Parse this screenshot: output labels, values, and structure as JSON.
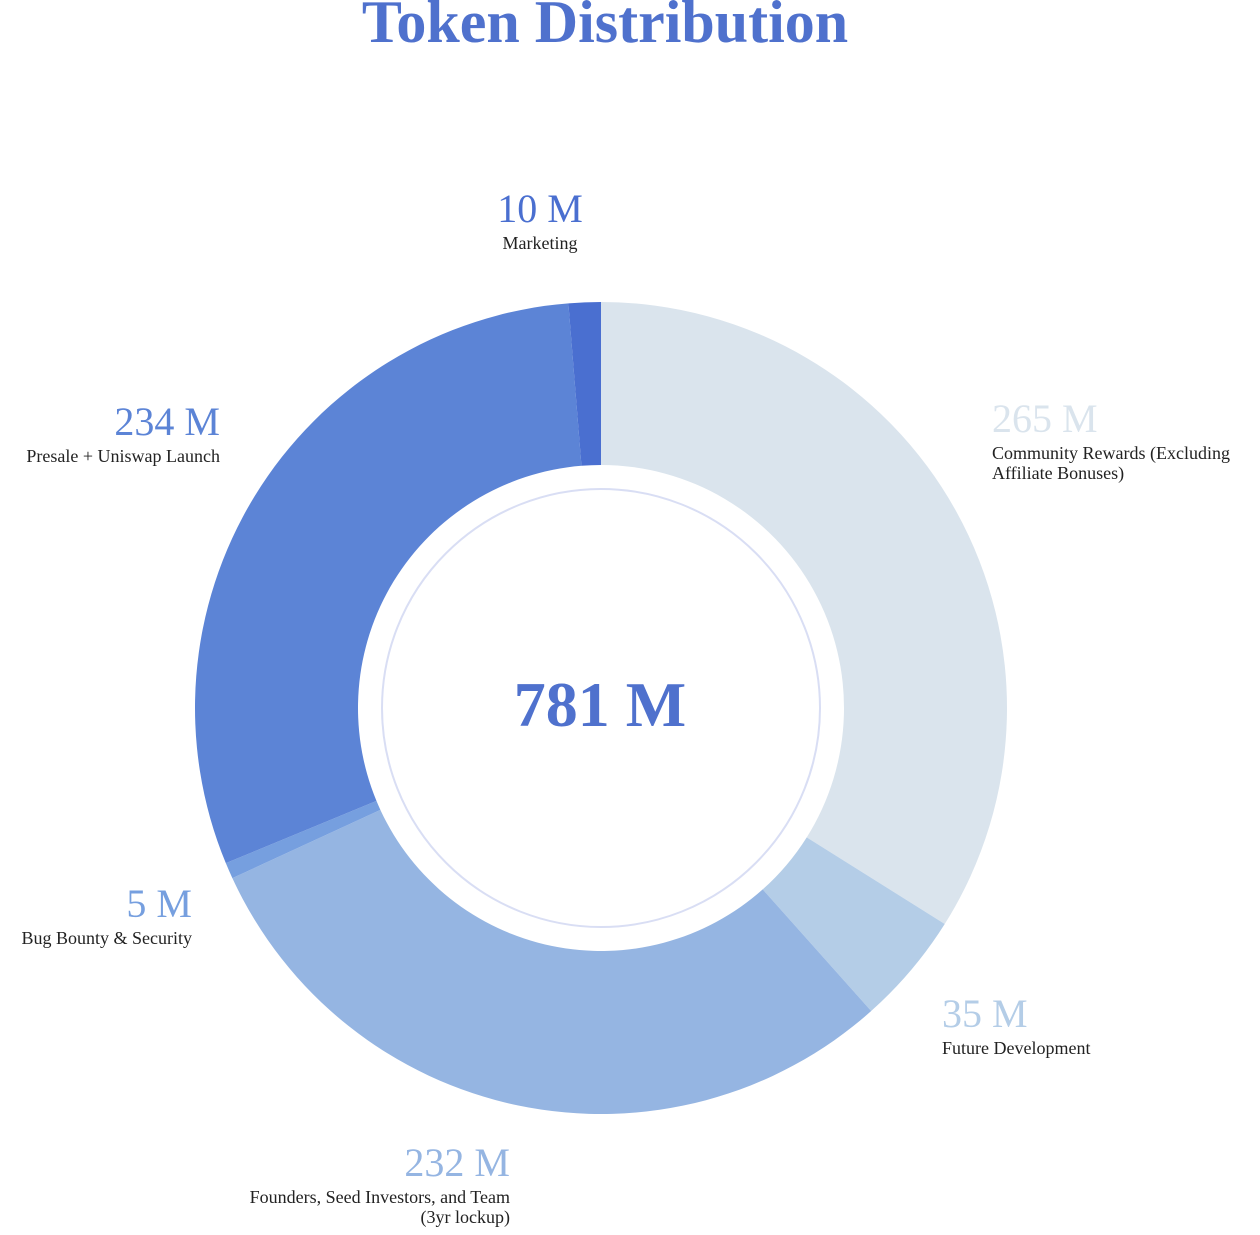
{
  "chart_data": {
    "type": "pie",
    "title": "Token Distribution",
    "total_label": "781 M",
    "unit": "M",
    "slices": [
      {
        "name": "Community Rewards (Excluding Affiliate Bonuses)",
        "name_lines": [
          "Community Rewards (Excluding",
          "Affiliate Bonuses)"
        ],
        "value": 265,
        "value_label": "265 M",
        "color": "#dae4ed",
        "label_color": "#dae4ed"
      },
      {
        "name": "Future Development",
        "name_lines": [
          "Future Development"
        ],
        "value": 35,
        "value_label": "35 M",
        "color": "#b4cde7",
        "label_color": "#b4cde7"
      },
      {
        "name": "Founders, Seed Investors, and Team (3yr lockup)",
        "name_lines": [
          "Founders, Seed Investors, and Team",
          "(3yr lockup)"
        ],
        "value": 232,
        "value_label": "232 M",
        "color": "#95b5e2",
        "label_color": "#95b5e2"
      },
      {
        "name": "Bug Bounty & Security",
        "name_lines": [
          "Bug Bounty & Security"
        ],
        "value": 5,
        "value_label": "5 M",
        "color": "#769fdf",
        "label_color": "#769fdf"
      },
      {
        "name": "Presale + Uniswap Launch",
        "name_lines": [
          "Presale + Uniswap Launch"
        ],
        "value": 234,
        "value_label": "234 M",
        "color": "#5c84d6",
        "label_color": "#5c84d6"
      },
      {
        "name": "Marketing",
        "name_lines": [
          "Marketing"
        ],
        "value": 10,
        "value_label": "10 M",
        "color": "#4a6fd0",
        "label_color": "#4a6fd0"
      }
    ]
  }
}
